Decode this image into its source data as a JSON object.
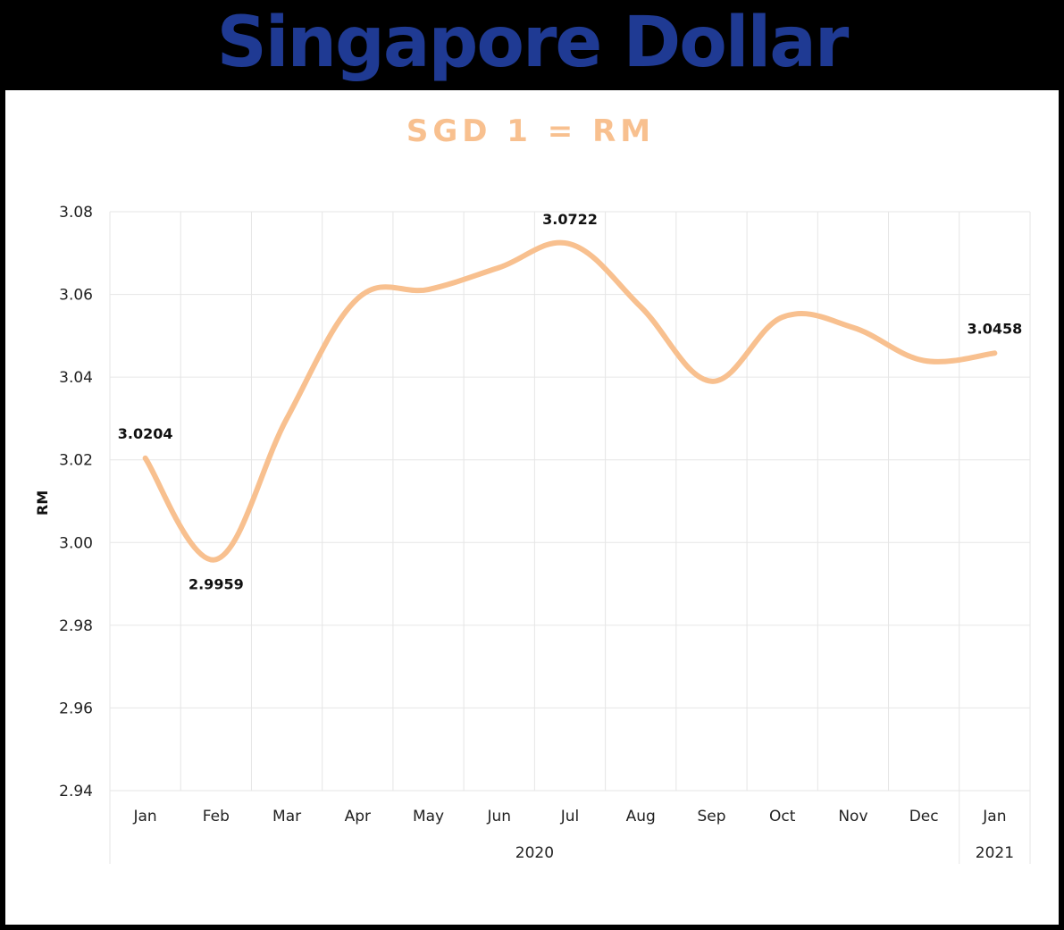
{
  "heading": "Singapore Dollar",
  "chart_data": {
    "type": "line",
    "title": "SGD 1 = RM",
    "xlabel": "",
    "ylabel": "RM",
    "ylim": [
      2.94,
      3.08
    ],
    "yticks": [
      "3.08",
      "3.06",
      "3.04",
      "3.02",
      "3.00",
      "2.98",
      "2.96",
      "2.94"
    ],
    "categories": [
      "Jan",
      "Feb",
      "Mar",
      "Apr",
      "May",
      "Jun",
      "Jul",
      "Aug",
      "Sep",
      "Oct",
      "Nov",
      "Dec",
      "Jan"
    ],
    "year_groups": [
      {
        "label": "2020",
        "start": 0,
        "end": 11
      },
      {
        "label": "2021",
        "start": 12,
        "end": 12
      }
    ],
    "series": [
      {
        "values": [
          3.0204,
          2.9959,
          3.03,
          3.059,
          3.0612,
          3.0665,
          3.0722,
          3.057,
          3.039,
          3.0545,
          3.052,
          3.044,
          3.0458
        ],
        "color": "#f8c08f"
      }
    ],
    "data_labels": [
      {
        "index": 0,
        "text": "3.0204",
        "position": "above"
      },
      {
        "index": 1,
        "text": "2.9959",
        "position": "below"
      },
      {
        "index": 6,
        "text": "3.0722",
        "position": "above"
      },
      {
        "index": 12,
        "text": "3.0458",
        "position": "above"
      }
    ],
    "grid": true,
    "legend": "none"
  }
}
